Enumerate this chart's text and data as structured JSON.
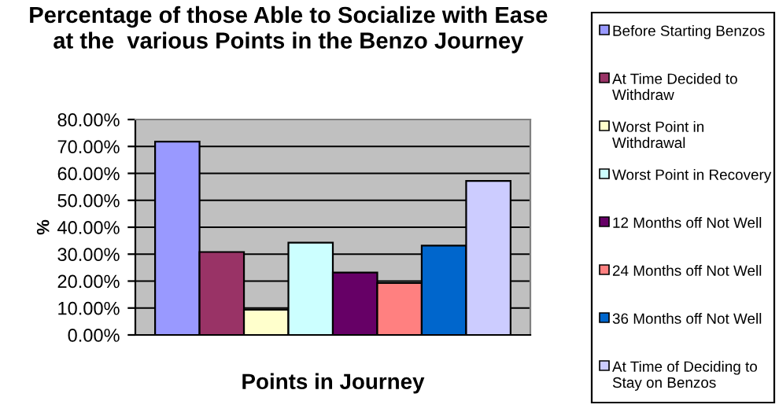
{
  "chart_data": {
    "type": "bar",
    "title": "Percentage of those Able to Socialize with Ease\nat the  various Points in the Benzo Journey",
    "xlabel": "Points in Journey",
    "ylabel": "%",
    "categories": [
      null
    ],
    "series": [
      {
        "name": "Before Starting Benzos",
        "color": "#9999ff",
        "values": [
          71.8
        ]
      },
      {
        "name": "At Time Decided to Withdraw",
        "color": "#993366",
        "values": [
          30.8
        ]
      },
      {
        "name": "Worst Point in Withdrawal",
        "color": "#ffffcc",
        "values": [
          9.4
        ]
      },
      {
        "name": "Worst Point in Recovery",
        "color": "#ccffff",
        "values": [
          34.3
        ]
      },
      {
        "name": "12 Months off Not Well",
        "color": "#660066",
        "values": [
          23.2
        ]
      },
      {
        "name": "24 Months off Not Well",
        "color": "#ff8080",
        "values": [
          19.3
        ]
      },
      {
        "name": "36 Months off Not Well",
        "color": "#0066cc",
        "values": [
          33.2
        ]
      },
      {
        "name": "At Time of Deciding to Stay on Benzos",
        "color": "#ccccff",
        "values": [
          57.2
        ]
      }
    ],
    "ylim": [
      0,
      80
    ],
    "yticks": [
      {
        "value": 0,
        "label": "0.00%"
      },
      {
        "value": 10,
        "label": "10.00%"
      },
      {
        "value": 20,
        "label": "20.00%"
      },
      {
        "value": 30,
        "label": "30.00%"
      },
      {
        "value": 40,
        "label": "40.00%"
      },
      {
        "value": 50,
        "label": "50.00%"
      },
      {
        "value": 60,
        "label": "60.00%"
      },
      {
        "value": 70,
        "label": "70.00%"
      },
      {
        "value": 80,
        "label": "80.00%"
      }
    ],
    "grid": "y",
    "legend": "right"
  }
}
